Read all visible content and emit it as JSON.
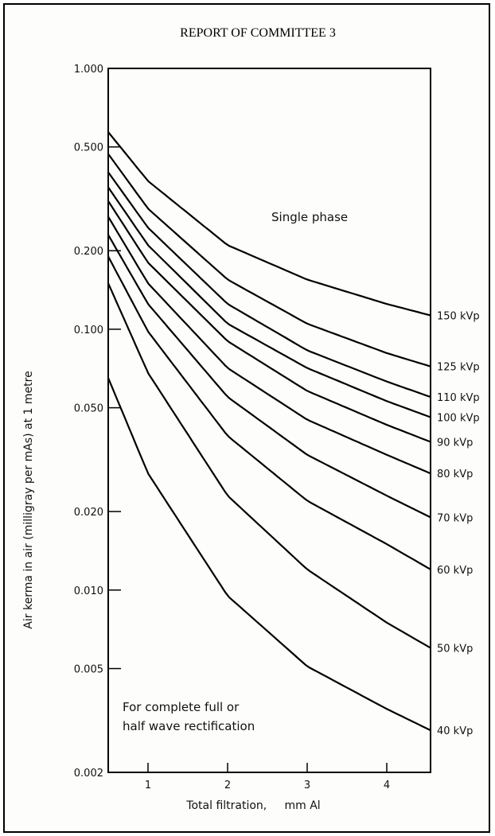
{
  "header": "REPORT OF COMMITTEE 3",
  "chart_data": {
    "type": "line",
    "title": "",
    "xlabel": "Total filtration,     mm Al",
    "ylabel": "Air kerma in air (milligray per mAs) at 1 metre",
    "yscale": "log",
    "xlim": [
      0.5,
      4.55
    ],
    "ylim": [
      0.002,
      1.0
    ],
    "x_ticks": [
      "1",
      "2",
      "3",
      "4"
    ],
    "x_tick_values": [
      1,
      2,
      3,
      4
    ],
    "y_ticks": [
      "1.000",
      "0.500",
      "0.200",
      "0.100",
      "0.050",
      "0.020",
      "0.010",
      "0.005",
      "0.002"
    ],
    "y_tick_values": [
      1.0,
      0.5,
      0.2,
      0.1,
      0.05,
      0.02,
      0.01,
      0.005,
      0.002
    ],
    "annotations": [
      "Single phase",
      "For complete full or",
      "half wave rectification"
    ],
    "x": [
      0.5,
      1,
      2,
      3,
      4,
      4.55
    ],
    "series": [
      {
        "name": "150 kVp",
        "values": [
          0.57,
          0.37,
          0.21,
          0.155,
          0.125,
          0.113
        ]
      },
      {
        "name": "125 kVp",
        "values": [
          0.47,
          0.29,
          0.155,
          0.105,
          0.081,
          0.072
        ]
      },
      {
        "name": "110 kVp",
        "values": [
          0.4,
          0.245,
          0.125,
          0.083,
          0.063,
          0.055
        ]
      },
      {
        "name": "100 kVp",
        "values": [
          0.35,
          0.21,
          0.105,
          0.071,
          0.053,
          0.046
        ]
      },
      {
        "name": "90 kVp",
        "values": [
          0.31,
          0.18,
          0.09,
          0.058,
          0.043,
          0.037
        ]
      },
      {
        "name": "80 kVp",
        "values": [
          0.27,
          0.15,
          0.071,
          0.045,
          0.033,
          0.028
        ]
      },
      {
        "name": "70 kVp",
        "values": [
          0.23,
          0.125,
          0.055,
          0.033,
          0.023,
          0.019
        ]
      },
      {
        "name": "60 kVp",
        "values": [
          0.19,
          0.098,
          0.039,
          0.022,
          0.015,
          0.012
        ]
      },
      {
        "name": "50 kVp",
        "values": [
          0.15,
          0.068,
          0.023,
          0.012,
          0.0075,
          0.006
        ]
      },
      {
        "name": "40 kVp",
        "values": [
          0.065,
          0.028,
          0.0095,
          0.0051,
          0.0035,
          0.0029
        ]
      }
    ]
  }
}
